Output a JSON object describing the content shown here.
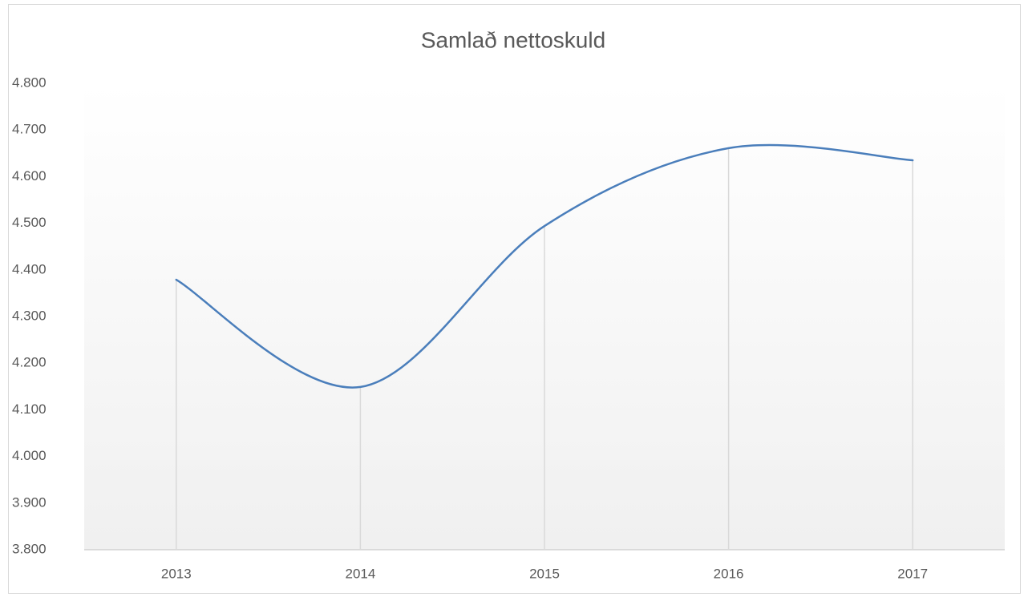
{
  "chart_data": {
    "type": "line",
    "title": "Samlað nettoskuld",
    "categories": [
      "2013",
      "2014",
      "2015",
      "2016",
      "2017"
    ],
    "series": [
      {
        "name": "Samlað nettoskuld",
        "color": "#4a7ebb",
        "values": [
          4379,
          4149,
          4494,
          4661,
          4635
        ]
      }
    ],
    "ylim": [
      3800,
      4800
    ],
    "yticks": [
      {
        "value": 3800,
        "label": "3.800"
      },
      {
        "value": 3900,
        "label": "3.900"
      },
      {
        "value": 4000,
        "label": "4.000"
      },
      {
        "value": 4100,
        "label": "4.100"
      },
      {
        "value": 4200,
        "label": "4.200"
      },
      {
        "value": 4300,
        "label": "4.300"
      },
      {
        "value": 4400,
        "label": "4.400"
      },
      {
        "value": 4500,
        "label": "4.500"
      },
      {
        "value": 4600,
        "label": "4.600"
      },
      {
        "value": 4700,
        "label": "4.700"
      },
      {
        "value": 4800,
        "label": "4.800"
      }
    ],
    "smooth": true,
    "drop_lines": true,
    "grid": false
  }
}
